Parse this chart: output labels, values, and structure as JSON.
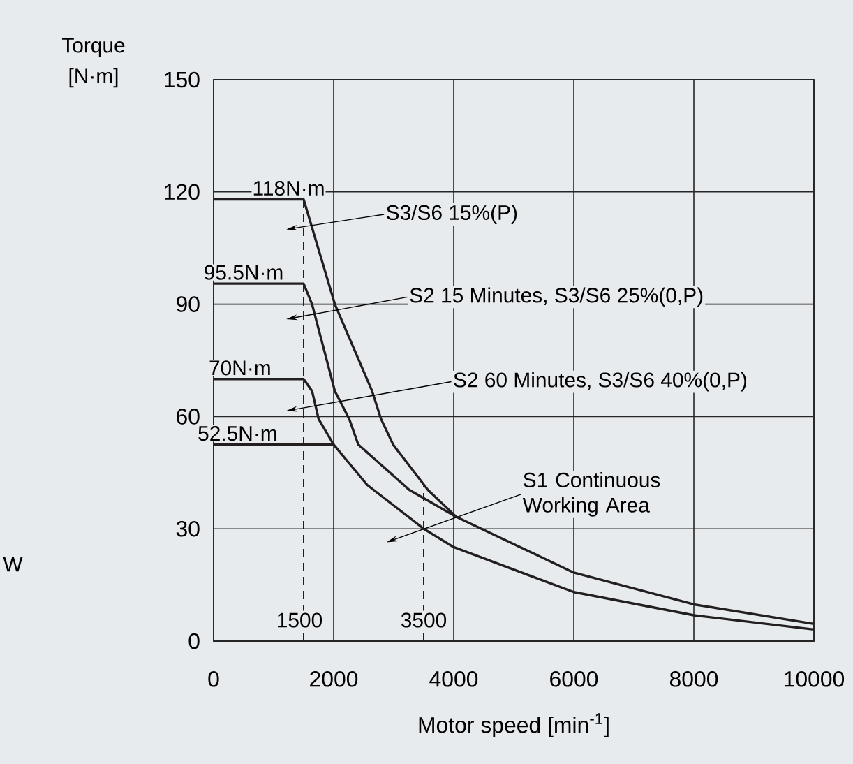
{
  "chart_data": {
    "type": "line",
    "xlabel": "Motor speed [min$^{-1}$]",
    "ylabel": "Torque [N·m]",
    "xlim": [
      0,
      10000
    ],
    "ylim": [
      0,
      150
    ],
    "xticks": [
      0,
      2000,
      4000,
      6000,
      8000,
      10000
    ],
    "yticks": [
      0,
      30,
      60,
      90,
      120,
      150
    ],
    "grid": true,
    "series": [
      {
        "color": "#231f20",
        "x": [
          0,
          1500,
          2020,
          2640,
          2790,
          2990,
          3570,
          4040,
          6000,
          8000,
          10000
        ],
        "values": [
          118,
          118,
          90,
          66.8,
          59.3,
          52.5,
          40.4,
          33.2,
          18.3,
          9.8,
          4.6
        ]
      },
      {
        "color": "#231f20",
        "x": [
          0,
          1500,
          1640,
          2020,
          2260,
          2410,
          3260,
          4040
        ],
        "values": [
          95.5,
          95.5,
          90,
          66.8,
          59.3,
          52.5,
          40.4,
          33.2
        ]
      },
      {
        "color": "#231f20",
        "x": [
          0,
          1500,
          1640,
          1750,
          2000
        ],
        "values": [
          70,
          70,
          66.8,
          59.3,
          52.5
        ]
      },
      {
        "color": "#231f20",
        "x": [
          0,
          2000,
          2560,
          3500,
          4000,
          6000,
          8000,
          10000
        ],
        "values": [
          52.5,
          52.5,
          41.7,
          30,
          25.1,
          13.1,
          6.9,
          3.1
        ]
      },
      {
        "color": "#231f20",
        "x": [
          1500,
          1500
        ],
        "values": [
          0,
          118
        ],
        "line_style": "dashed"
      },
      {
        "color": "#231f20",
        "x": [
          3500,
          3500
        ],
        "values": [
          0,
          41.5
        ],
        "line_style": "dashed"
      }
    ],
    "annotations": [
      {
        "text": "118N·m",
        "x": 1250,
        "y": 118
      },
      {
        "text": "95.5N·m",
        "x": 500,
        "y": 95.5
      },
      {
        "text": "70N·m",
        "x": 440,
        "y": 70
      },
      {
        "text": "52.5N·m",
        "x": 400,
        "y": 52.5
      },
      {
        "text": "1500",
        "x": 1500,
        "y": 0
      },
      {
        "text": "3500",
        "x": 3500,
        "y": 0
      },
      "S3/S6 15%(P)",
      "S2 15 Minutes, S3/S6 25%(0,P)",
      "S2 60 Minutes, S3/S6 40%(0,P)",
      "S1 Continuous Working Area",
      "W"
    ]
  }
}
